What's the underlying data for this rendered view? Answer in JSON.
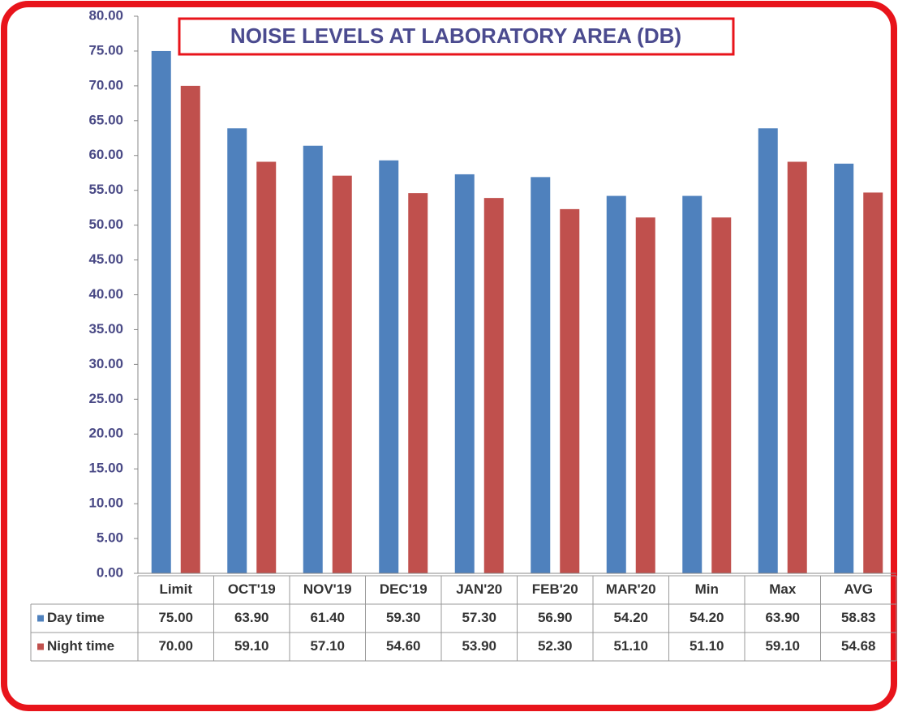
{
  "chart_data": {
    "type": "bar",
    "title": "NOISE LEVELS AT LABORATORY AREA (DB)",
    "categories": [
      "Limit",
      "OCT'19",
      "NOV'19",
      "DEC'19",
      "JAN'20",
      "FEB'20",
      "MAR'20",
      "Min",
      "Max",
      "AVG"
    ],
    "series": [
      {
        "name": "Day time",
        "color": "#4f81bd",
        "values": [
          75,
          63.9,
          61.4,
          59.3,
          57.3,
          56.9,
          54.2,
          54.2,
          63.9,
          58.83
        ],
        "value_labels": [
          "75.00",
          "63.90",
          "61.40",
          "59.30",
          "57.30",
          "56.90",
          "54.20",
          "54.20",
          "63.90",
          "58.83"
        ]
      },
      {
        "name": "Night time",
        "color": "#c0504d",
        "values": [
          70,
          59.1,
          57.1,
          54.6,
          53.9,
          52.3,
          51.1,
          51.1,
          59.1,
          54.68
        ],
        "value_labels": [
          "70.00",
          "59.10",
          "57.10",
          "54.60",
          "53.90",
          "52.30",
          "51.10",
          "51.10",
          "59.10",
          "54.68"
        ]
      }
    ],
    "ylim": [
      0,
      80
    ],
    "yticks": [
      {
        "value": 0,
        "label": "0.00"
      },
      {
        "value": 5,
        "label": "5.00"
      },
      {
        "value": 10,
        "label": "10.00"
      },
      {
        "value": 15,
        "label": "15.00"
      },
      {
        "value": 20,
        "label": "20.00"
      },
      {
        "value": 25,
        "label": "25.00"
      },
      {
        "value": 30,
        "label": "30.00"
      },
      {
        "value": 35,
        "label": "35.00"
      },
      {
        "value": 40,
        "label": "40.00"
      },
      {
        "value": 45,
        "label": "45.00"
      },
      {
        "value": 50,
        "label": "50.00"
      },
      {
        "value": 55,
        "label": "55.00"
      },
      {
        "value": 60,
        "label": "60.00"
      },
      {
        "value": 65,
        "label": "65.00"
      },
      {
        "value": 70,
        "label": "70.00"
      },
      {
        "value": 75,
        "label": "75.00"
      },
      {
        "value": 80,
        "label": "80.00"
      }
    ],
    "grid": false
  }
}
